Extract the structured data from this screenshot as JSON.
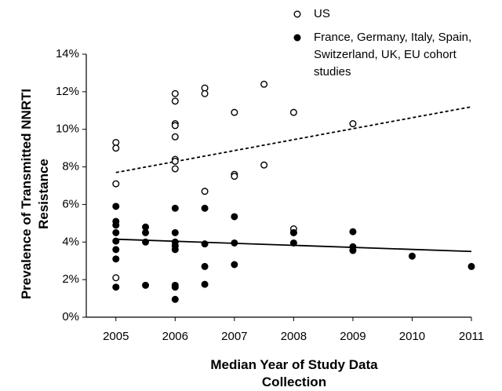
{
  "chart_data": {
    "type": "scatter",
    "xlabel": "Median Year of  Study Data Collection",
    "ylabel": "Prevalence of Transmitted NNRTI Resistance",
    "xlim": [
      2004.5,
      2011
    ],
    "xticks": [
      2005,
      2006,
      2007,
      2008,
      2009,
      2010,
      2011
    ],
    "ylim": [
      0,
      14
    ],
    "yticks": [
      {
        "value": 0,
        "label": "0%"
      },
      {
        "value": 2,
        "label": "2%"
      },
      {
        "value": 4,
        "label": "4%"
      },
      {
        "value": 6,
        "label": "6%"
      },
      {
        "value": 8,
        "label": "8%"
      },
      {
        "value": 10,
        "label": "10%"
      },
      {
        "value": 12,
        "label": "12%"
      },
      {
        "value": 14,
        "label": "14%"
      }
    ],
    "series": [
      {
        "name": "US",
        "color": "#000000",
        "marker": "open",
        "x": [
          2005,
          2005,
          2005,
          2005,
          2006,
          2006,
          2006,
          2006,
          2006,
          2006,
          2006,
          2006,
          2006.5,
          2006.5,
          2006.5,
          2007,
          2007,
          2007,
          2007.5,
          2007.5,
          2008,
          2008,
          2008,
          2009
        ],
        "values": [
          9.3,
          9.0,
          7.1,
          2.1,
          11.9,
          11.5,
          10.3,
          10.2,
          9.6,
          8.4,
          8.3,
          7.9,
          12.2,
          11.9,
          6.7,
          10.9,
          7.6,
          7.5,
          12.4,
          8.1,
          10.9,
          4.7,
          4.5,
          10.3
        ],
        "trend": {
          "x": [
            2005,
            2011
          ],
          "values": [
            7.7,
            11.2
          ],
          "dash": true
        }
      },
      {
        "name": "France, Germany, Italy, Spain, Switzerland, UK, EU cohort studies",
        "color": "#000000",
        "marker": "filled",
        "x": [
          2005,
          2005,
          2005,
          2005,
          2005,
          2005,
          2005,
          2005,
          2005.5,
          2005.5,
          2005.5,
          2005.5,
          2006,
          2006,
          2006,
          2006,
          2006,
          2006,
          2006,
          2006,
          2006.5,
          2006.5,
          2006.5,
          2006.5,
          2007,
          2007,
          2007,
          2008,
          2008,
          2009,
          2009,
          2009,
          2010,
          2011
        ],
        "values": [
          5.9,
          5.1,
          4.9,
          4.5,
          4.05,
          3.6,
          3.1,
          1.6,
          4.8,
          4.5,
          4.0,
          1.7,
          5.8,
          4.5,
          4.0,
          3.8,
          3.6,
          1.7,
          1.6,
          0.95,
          5.8,
          3.9,
          2.7,
          1.75,
          5.35,
          3.95,
          2.8,
          4.5,
          3.95,
          4.55,
          3.75,
          3.55,
          3.25,
          2.7
        ],
        "trend": {
          "x": [
            2005,
            2011
          ],
          "values": [
            4.15,
            3.5
          ],
          "dash": false
        }
      }
    ]
  }
}
